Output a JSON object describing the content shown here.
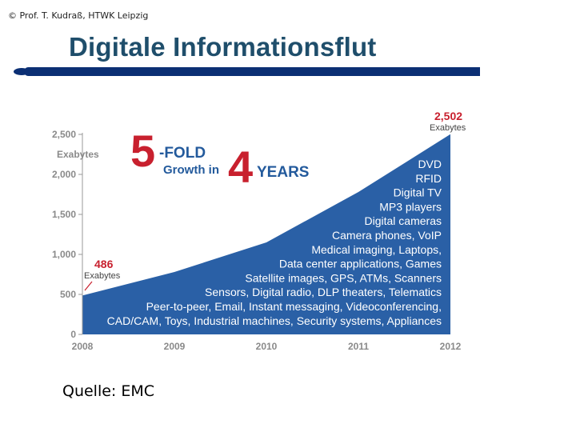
{
  "header": {
    "copyright": "© Prof. T. Kudraß, HTWK Leipzig",
    "title": "Digitale Informationsflut"
  },
  "footer": {
    "source": "Quelle: EMC"
  },
  "colors": {
    "area": "#2a60a6",
    "accent_red": "#c8202e",
    "headline": "#235a9c",
    "axis_text": "#8a8a8a",
    "title": "#1f4e6b",
    "rule": "#0b2f74"
  },
  "chart_data": {
    "type": "area",
    "x": [
      2008,
      2009,
      2010,
      2011,
      2012
    ],
    "y": [
      486,
      780,
      1150,
      1780,
      2502
    ],
    "ylim": [
      0,
      2500
    ],
    "yticks": [
      "0",
      "500",
      "1,000",
      "1,500",
      "2,000",
      "2,500"
    ],
    "xticks": [
      "2008",
      "2009",
      "2010",
      "2011",
      "2012"
    ],
    "ylabel": "Exabytes",
    "grid": false,
    "headline": {
      "big1": "5",
      "small1": "-FOLD",
      "small2": "Growth in",
      "big2": "4",
      "small3": "YEARS"
    },
    "start_label": {
      "value": "486",
      "unit": "Exabytes"
    },
    "end_label": {
      "value": "2,502",
      "unit": "Exabytes"
    },
    "annotations": [
      "DVD",
      "RFID",
      "Digital TV",
      "MP3 players",
      "Digital cameras",
      "Camera phones, VoIP",
      "Medical imaging, Laptops,",
      "Data center applications, Games",
      "Satellite images, GPS, ATMs, Scanners",
      "Sensors, Digital radio, DLP theaters, Telematics",
      "Peer-to-peer, Email, Instant messaging, Videoconferencing,",
      "CAD/CAM, Toys, Industrial machines, Security systems, Appliances"
    ]
  }
}
